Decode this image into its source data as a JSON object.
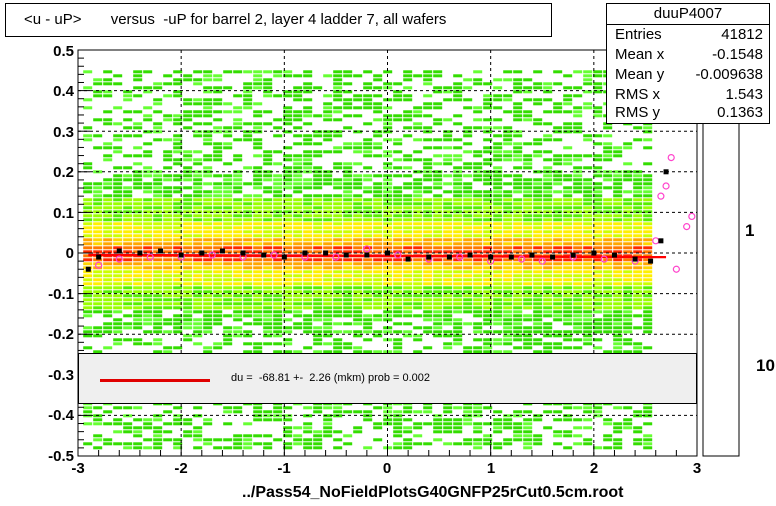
{
  "chart_data": {
    "type": "heatmap",
    "title": "<u - uP>       versus  -uP for barrel 2, layer 4 ladder 7, all wafers",
    "xlim": [
      -3,
      3
    ],
    "ylim": [
      -0.5,
      0.5
    ],
    "x_ticks": [
      "-3",
      "-2",
      "-1",
      "0",
      "1",
      "2",
      "3"
    ],
    "y_ticks": [
      "-0.5",
      "-0.4",
      "-0.3",
      "-0.2",
      "-0.1",
      "0",
      "0.1",
      "0.2",
      "0.3",
      "0.4",
      "0.5"
    ],
    "colorbar_ticks": [
      "1",
      "10"
    ],
    "grid": true,
    "stats": {
      "name": "duuP4007",
      "rows": [
        {
          "label": "Entries",
          "value": "41812"
        },
        {
          "label": "Mean x",
          "value": "-0.1548"
        },
        {
          "label": "Mean y",
          "value": "-0.009638"
        },
        {
          "label": "RMS x",
          "value": "1.543"
        },
        {
          "label": "RMS y",
          "value": "0.1363"
        }
      ]
    },
    "fit_text": "du =  -68.81 +-  2.26 (mkm) prob = 0.002",
    "profile_black": {
      "x": [
        -2.9,
        -2.8,
        -2.6,
        -2.4,
        -2.2,
        -2.0,
        -1.8,
        -1.6,
        -1.4,
        -1.2,
        -1.0,
        -0.8,
        -0.6,
        -0.4,
        -0.2,
        0.0,
        0.2,
        0.4,
        0.6,
        0.8,
        1.0,
        1.2,
        1.4,
        1.6,
        1.8,
        2.0,
        2.2,
        2.4,
        2.55,
        2.65,
        2.7
      ],
      "y": [
        -0.04,
        -0.01,
        0.005,
        0.0,
        0.005,
        -0.005,
        0.0,
        0.005,
        0.0,
        -0.005,
        -0.01,
        0.0,
        0.0,
        -0.005,
        -0.005,
        0.0,
        -0.015,
        -0.01,
        -0.01,
        -0.005,
        -0.01,
        -0.01,
        -0.005,
        -0.01,
        -0.005,
        0.0,
        -0.005,
        -0.015,
        -0.02,
        0.03,
        0.2
      ]
    },
    "profile_pink": {
      "x": [
        -2.8,
        -2.6,
        -2.3,
        -2.0,
        -1.7,
        -1.4,
        -1.1,
        -0.8,
        -0.5,
        -0.2,
        0.1,
        0.4,
        0.7,
        1.0,
        1.3,
        1.5,
        1.8,
        2.1,
        2.4,
        2.6,
        2.65,
        2.7,
        2.75,
        2.8,
        2.9,
        2.95
      ],
      "y": [
        -0.03,
        -0.015,
        -0.01,
        -0.01,
        -0.005,
        -0.01,
        -0.005,
        -0.01,
        -0.01,
        0.01,
        -0.005,
        -0.015,
        -0.01,
        -0.02,
        -0.015,
        -0.02,
        -0.01,
        -0.015,
        -0.02,
        0.03,
        0.14,
        0.165,
        0.235,
        -0.04,
        0.065,
        0.09
      ]
    },
    "fit_line": {
      "x": [
        -2.9,
        2.7
      ],
      "y": [
        -0.005,
        -0.01
      ]
    }
  },
  "filename": "../Pass54_NoFieldPlotsG40GNFP25rCut0.5cm.root"
}
